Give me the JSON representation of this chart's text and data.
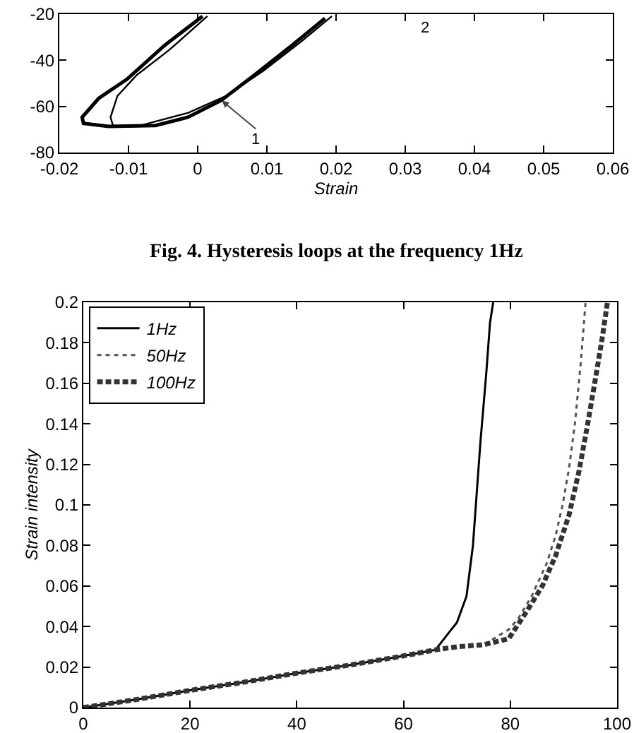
{
  "chart_data": [
    {
      "type": "line",
      "xlabel": "Strain",
      "xlim": [
        -0.02,
        0.06
      ],
      "xticks": [
        -0.02,
        -0.01,
        0,
        0.01,
        0.02,
        0.03,
        0.04,
        0.05,
        0.06
      ],
      "ylim": [
        -80,
        -20
      ],
      "yticks": [
        -80,
        -60,
        -40,
        -20
      ],
      "grid": false,
      "legend": false,
      "marker": "none",
      "series": [
        {
          "color": "#000000",
          "line_style": "solid",
          "x": [
            0.0007,
            -0.0048,
            -0.0102,
            -0.0143,
            -0.0167,
            -0.0165,
            -0.0129,
            -0.0061,
            -0.0014,
            0.0034,
            0.0082,
            0.0136,
            0.0184
          ],
          "values": [
            -20.9,
            -33.6,
            -48.2,
            -56.5,
            -64.7,
            -67.4,
            -68.7,
            -68.3,
            -64.7,
            -57.4,
            -46.4,
            -33.6,
            -21.8
          ]
        },
        {
          "color": "#000000",
          "line_style": "solid",
          "x": [
            0.0014,
            -0.0041,
            -0.0088,
            -0.0116,
            -0.0126,
            -0.0122,
            -0.0088,
            -0.0014,
            0.0041,
            0.0095,
            0.015,
            0.0194
          ],
          "values": [
            -20.9,
            -35.5,
            -46.4,
            -55.5,
            -64.7,
            -68.7,
            -68.7,
            -62.8,
            -55.5,
            -44.6,
            -31.8,
            -20.9
          ]
        }
      ],
      "annotations": [
        {
          "text": "1",
          "x": 0.0035,
          "y": -57.5
        },
        "2",
        "Fig. 4. Hysteresis loops at the frequency 1Hz"
      ]
    },
    {
      "type": "line",
      "ylabel": "Strain intensity",
      "xlim": [
        0,
        100
      ],
      "xticks": [
        0,
        20,
        40,
        60,
        80,
        100
      ],
      "ylim": [
        0,
        0.2
      ],
      "yticks": [
        0,
        0.02,
        0.04,
        0.06,
        0.08,
        0.1,
        0.12,
        0.14,
        0.16,
        0.18,
        0.2
      ],
      "grid": false,
      "legend": "top left",
      "marker": "none",
      "series": [
        {
          "name": "1Hz",
          "color": "#000000",
          "line_style": "solid",
          "x": [
            0,
            10,
            20,
            30,
            40,
            50,
            60,
            66,
            68.2,
            70,
            71.8,
            73,
            74.4,
            75.5,
            76.2,
            76.8
          ],
          "values": [
            0,
            0.004,
            0.0085,
            0.0125,
            0.017,
            0.021,
            0.0255,
            0.0285,
            0.036,
            0.042,
            0.055,
            0.08,
            0.131,
            0.165,
            0.19,
            0.2
          ]
        },
        {
          "name": "50Hz",
          "color": "#555555",
          "line_style": "dotted",
          "x": [
            0,
            10,
            20,
            30,
            40,
            50,
            60,
            66,
            70,
            75,
            79.7,
            81.5,
            84,
            86.8,
            88.5,
            89.8,
            91,
            92.1,
            93.2,
            94.1
          ],
          "values": [
            0,
            0.004,
            0.0085,
            0.0125,
            0.017,
            0.021,
            0.0255,
            0.0285,
            0.03,
            0.031,
            0.0385,
            0.044,
            0.055,
            0.071,
            0.085,
            0.1,
            0.118,
            0.14,
            0.17,
            0.2
          ]
        },
        {
          "name": "100Hz",
          "color": "#333333",
          "line_style": "dashed",
          "x": [
            0,
            10,
            20,
            30,
            40,
            50,
            60,
            66,
            70,
            75,
            79.7,
            83.2,
            86,
            88.5,
            91,
            92.9,
            94.5,
            96,
            97.2,
            98.2
          ],
          "values": [
            0,
            0.004,
            0.0085,
            0.0125,
            0.017,
            0.021,
            0.0255,
            0.0285,
            0.03,
            0.031,
            0.034,
            0.048,
            0.06,
            0.075,
            0.095,
            0.117,
            0.14,
            0.163,
            0.182,
            0.2
          ]
        }
      ]
    }
  ]
}
